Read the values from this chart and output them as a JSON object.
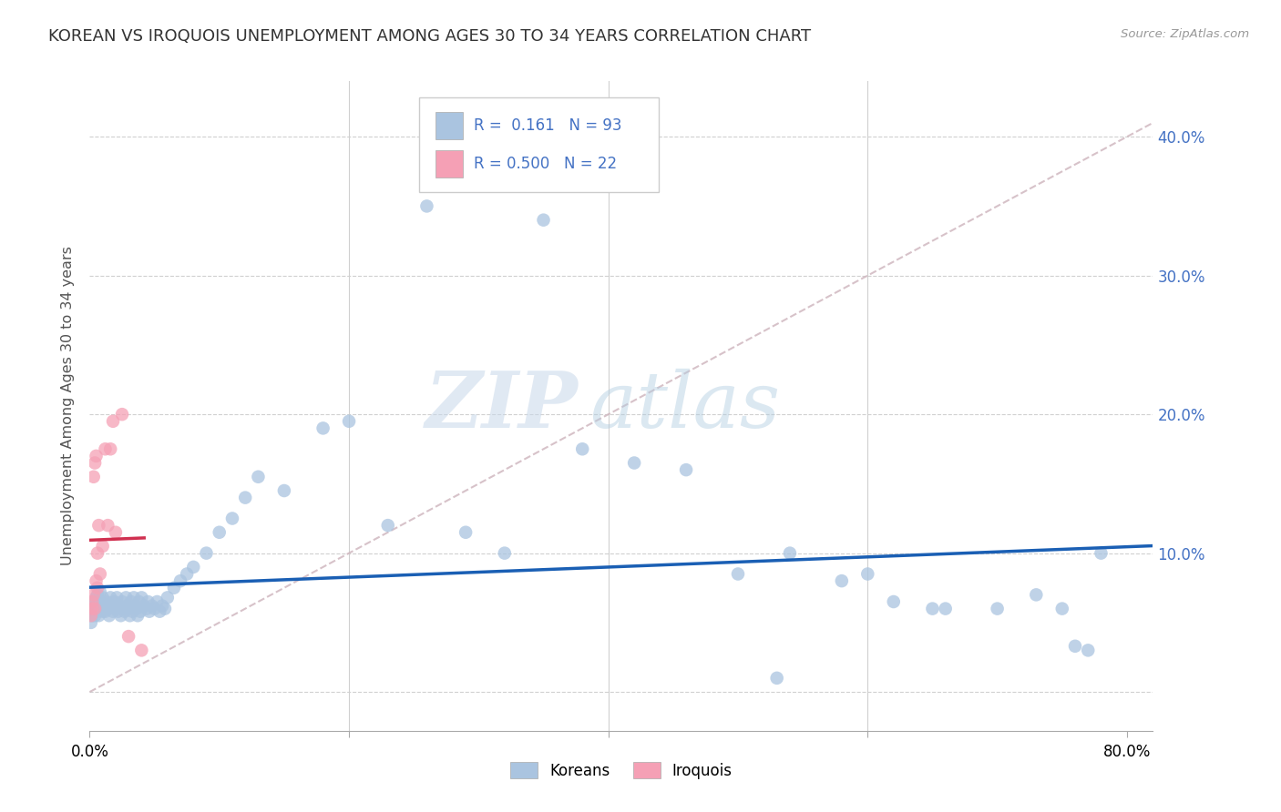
{
  "title": "KOREAN VS IROQUOIS UNEMPLOYMENT AMONG AGES 30 TO 34 YEARS CORRELATION CHART",
  "source": "Source: ZipAtlas.com",
  "ylabel": "Unemployment Among Ages 30 to 34 years",
  "xlim": [
    0.0,
    0.82
  ],
  "ylim": [
    -0.028,
    0.44
  ],
  "yticks": [
    0.0,
    0.1,
    0.2,
    0.3,
    0.4
  ],
  "xticks": [
    0.0,
    0.2,
    0.4,
    0.6,
    0.8
  ],
  "korean_R": 0.161,
  "korean_N": 93,
  "iroquois_R": 0.5,
  "iroquois_N": 22,
  "korean_color": "#aac4e0",
  "iroquois_color": "#f5a0b5",
  "korean_line_color": "#1a5fb4",
  "iroquois_line_color": "#d03050",
  "diag_line_color": "#d0b8c0",
  "watermark_color": "#ccd8ea",
  "background_color": "#ffffff",
  "title_fontsize": 13,
  "korean_x": [
    0.001,
    0.002,
    0.002,
    0.003,
    0.003,
    0.004,
    0.004,
    0.005,
    0.005,
    0.006,
    0.006,
    0.007,
    0.007,
    0.008,
    0.008,
    0.009,
    0.01,
    0.01,
    0.011,
    0.012,
    0.013,
    0.014,
    0.015,
    0.016,
    0.017,
    0.018,
    0.019,
    0.02,
    0.021,
    0.022,
    0.023,
    0.024,
    0.025,
    0.026,
    0.027,
    0.028,
    0.029,
    0.03,
    0.031,
    0.032,
    0.033,
    0.034,
    0.035,
    0.036,
    0.037,
    0.038,
    0.039,
    0.04,
    0.042,
    0.044,
    0.045,
    0.046,
    0.048,
    0.05,
    0.052,
    0.054,
    0.056,
    0.058,
    0.06,
    0.065,
    0.07,
    0.075,
    0.08,
    0.09,
    0.1,
    0.11,
    0.12,
    0.13,
    0.15,
    0.18,
    0.2,
    0.23,
    0.26,
    0.29,
    0.32,
    0.35,
    0.38,
    0.42,
    0.46,
    0.5,
    0.54,
    0.58,
    0.62,
    0.66,
    0.7,
    0.73,
    0.75,
    0.76,
    0.77,
    0.78,
    0.53,
    0.6,
    0.65
  ],
  "korean_y": [
    0.05,
    0.055,
    0.06,
    0.062,
    0.058,
    0.065,
    0.055,
    0.06,
    0.068,
    0.058,
    0.07,
    0.062,
    0.055,
    0.065,
    0.072,
    0.06,
    0.058,
    0.068,
    0.063,
    0.058,
    0.065,
    0.06,
    0.055,
    0.068,
    0.062,
    0.058,
    0.065,
    0.06,
    0.068,
    0.058,
    0.062,
    0.055,
    0.065,
    0.06,
    0.058,
    0.068,
    0.062,
    0.06,
    0.055,
    0.065,
    0.058,
    0.068,
    0.062,
    0.06,
    0.055,
    0.065,
    0.058,
    0.068,
    0.062,
    0.06,
    0.065,
    0.058,
    0.062,
    0.06,
    0.065,
    0.058,
    0.062,
    0.06,
    0.068,
    0.075,
    0.08,
    0.085,
    0.09,
    0.1,
    0.115,
    0.125,
    0.14,
    0.155,
    0.145,
    0.19,
    0.195,
    0.12,
    0.35,
    0.115,
    0.1,
    0.34,
    0.175,
    0.165,
    0.16,
    0.085,
    0.1,
    0.08,
    0.065,
    0.06,
    0.06,
    0.07,
    0.06,
    0.033,
    0.03,
    0.1,
    0.01,
    0.085,
    0.06
  ],
  "iroquois_x": [
    0.001,
    0.002,
    0.002,
    0.003,
    0.003,
    0.004,
    0.004,
    0.005,
    0.005,
    0.006,
    0.006,
    0.007,
    0.008,
    0.01,
    0.012,
    0.014,
    0.016,
    0.018,
    0.02,
    0.025,
    0.03,
    0.04
  ],
  "iroquois_y": [
    0.055,
    0.06,
    0.065,
    0.07,
    0.155,
    0.165,
    0.06,
    0.08,
    0.17,
    0.075,
    0.1,
    0.12,
    0.085,
    0.105,
    0.175,
    0.12,
    0.175,
    0.195,
    0.115,
    0.2,
    0.04,
    0.03
  ],
  "legend_korean_text": "R =  0.161   N = 93",
  "legend_iroquois_text": "R = 0.500   N = 22",
  "bottom_legend_labels": [
    "Koreans",
    "Iroquois"
  ]
}
